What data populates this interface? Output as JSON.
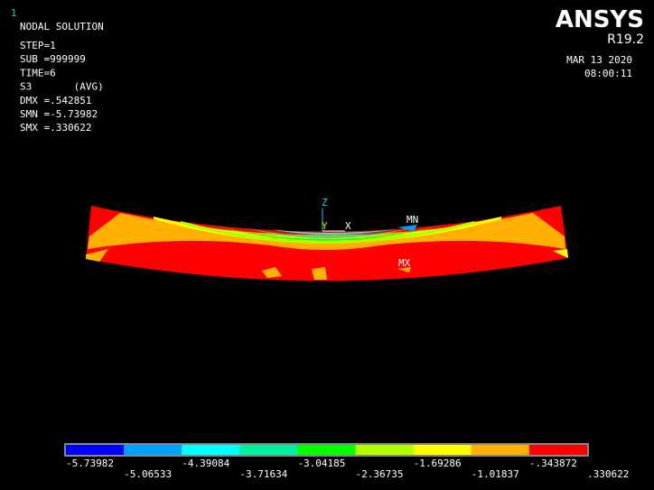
{
  "window_number": "1",
  "info": {
    "title": "NODAL SOLUTION",
    "lines": [
      "STEP=1",
      "SUB =999999",
      "TIME=6",
      "S3       (AVG)",
      "DMX =.542851",
      "SMN =-5.73982",
      "SMX =.330622"
    ]
  },
  "brand": {
    "logo": "ANSYS",
    "version": "R19.2",
    "date": "MAR 13 2020",
    "time": "08:00:11"
  },
  "triad": {
    "z": "Z",
    "y": "Y",
    "x": "X"
  },
  "markers": {
    "min": "MN",
    "max": "MX"
  },
  "legend": {
    "labels": [
      "-5.73982",
      "-5.06533",
      "-4.39084",
      "-3.71634",
      "-3.04185",
      "-2.36735",
      "-1.69286",
      "-1.01837",
      "-.343872",
      ".330622"
    ],
    "colors": [
      "#0000ff",
      "#00a0ff",
      "#00ffff",
      "#00f0a0",
      "#00ff00",
      "#b0ff00",
      "#ffff00",
      "#ffb000",
      "#ff0000"
    ]
  }
}
